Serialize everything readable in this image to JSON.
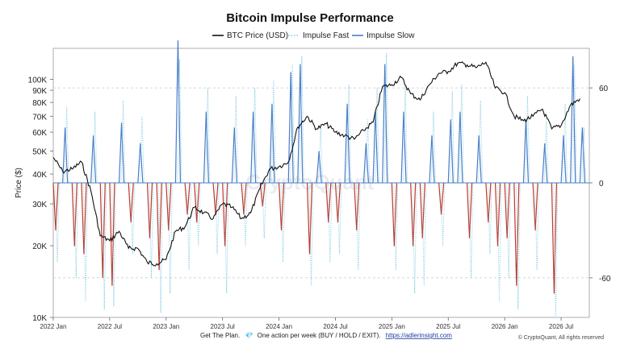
{
  "chart_data": {
    "type": "line",
    "title": "Bitcoin Impulse Performance",
    "ylabel": "Price ($)",
    "legend": {
      "placement": "top-center",
      "items": [
        {
          "name": "BTC Price (USD)",
          "style": "solid",
          "color": "#111111"
        },
        {
          "name": "Impulse Fast",
          "style": "dotted",
          "color": "#7ec8e3"
        },
        {
          "name": "Impulse Slow",
          "style": "solid",
          "color": "#4a7cc7"
        }
      ]
    },
    "x_ticks": [
      "2022 Jan",
      "2022 Jul",
      "2023 Jan",
      "2023 Jul",
      "2024 Jan",
      "2024 Jul",
      "2025 Jan",
      "2025 Jul",
      "2026 Jan",
      "2026 Jul"
    ],
    "x_range": [
      "2022-01",
      "2026-10"
    ],
    "y_left": {
      "scale": "log",
      "range": [
        10000,
        135000
      ],
      "ticks": [
        {
          "value": 10000,
          "label": "10K"
        },
        {
          "value": 20000,
          "label": "20K"
        },
        {
          "value": 30000,
          "label": "30K"
        },
        {
          "value": 40000,
          "label": "40K"
        },
        {
          "value": 50000,
          "label": "50K"
        },
        {
          "value": 60000,
          "label": "60K"
        },
        {
          "value": 70000,
          "label": "70K"
        },
        {
          "value": 80000,
          "label": "80K"
        },
        {
          "value": 90000,
          "label": "90K"
        },
        {
          "value": 100000,
          "label": "100K"
        }
      ]
    },
    "y_right": {
      "scale": "linear",
      "range": [
        -85,
        85
      ],
      "ticks": [
        {
          "value": 60,
          "label": "60"
        },
        {
          "value": 0,
          "label": "0"
        },
        {
          "value": -60,
          "label": "-60"
        }
      ]
    },
    "btc_price": {
      "name": "BTC Price (USD)",
      "x": [
        "2022-01",
        "2022-02",
        "2022-03",
        "2022-04",
        "2022-05",
        "2022-06",
        "2022-07",
        "2022-08",
        "2022-09",
        "2022-10",
        "2022-11",
        "2022-12",
        "2023-01",
        "2023-02",
        "2023-03",
        "2023-04",
        "2023-05",
        "2023-06",
        "2023-07",
        "2023-08",
        "2023-09",
        "2023-10",
        "2023-11",
        "2023-12",
        "2024-01",
        "2024-02",
        "2024-03",
        "2024-04",
        "2024-05",
        "2024-06",
        "2024-07",
        "2024-08",
        "2024-09",
        "2024-10",
        "2024-11",
        "2024-12",
        "2025-01",
        "2025-02",
        "2025-03",
        "2025-04",
        "2025-05",
        "2025-06",
        "2025-07",
        "2025-08",
        "2025-09",
        "2025-10",
        "2025-11",
        "2025-12",
        "2026-01",
        "2026-02",
        "2026-03",
        "2026-04",
        "2026-05",
        "2026-06",
        "2026-07",
        "2026-08",
        "2026-09"
      ],
      "values": [
        47000,
        41000,
        42000,
        45000,
        34000,
        22000,
        21000,
        23000,
        19500,
        19500,
        17000,
        16800,
        17500,
        23000,
        24000,
        29000,
        27500,
        26000,
        30000,
        29000,
        26000,
        27500,
        35000,
        42000,
        43000,
        45000,
        63000,
        70000,
        62000,
        65000,
        60000,
        58000,
        56000,
        61000,
        66000,
        93000,
        95000,
        102000,
        87000,
        82000,
        95000,
        106000,
        108000,
        117000,
        115000,
        112000,
        118000,
        92000,
        88000,
        70000,
        67000,
        70000,
        75000,
        62000,
        64000,
        78000,
        83000
      ]
    },
    "impulse_fast": {
      "name": "Impulse Fast",
      "x": [
        "2022-01",
        "2022-02",
        "2022-03",
        "2022-04",
        "2022-05",
        "2022-06",
        "2022-07",
        "2022-08",
        "2022-09",
        "2022-10",
        "2022-11",
        "2022-12",
        "2023-01",
        "2023-02",
        "2023-03",
        "2023-04",
        "2023-05",
        "2023-06",
        "2023-07",
        "2023-08",
        "2023-09",
        "2023-10",
        "2023-11",
        "2023-12",
        "2024-01",
        "2024-02",
        "2024-03",
        "2024-04",
        "2024-05",
        "2024-06",
        "2024-07",
        "2024-08",
        "2024-09",
        "2024-10",
        "2024-11",
        "2024-12",
        "2025-01",
        "2025-02",
        "2025-03",
        "2025-04",
        "2025-05",
        "2025-06",
        "2025-07",
        "2025-08",
        "2025-09",
        "2025-10",
        "2025-11",
        "2025-12",
        "2026-01",
        "2026-02",
        "2026-03",
        "2026-04",
        "2026-05",
        "2026-06",
        "2026-07",
        "2026-08",
        "2026-09"
      ],
      "values": [
        -50,
        48,
        -60,
        -75,
        45,
        -80,
        -78,
        52,
        -45,
        42,
        -60,
        -82,
        -70,
        78,
        -55,
        -40,
        60,
        -45,
        -70,
        55,
        -40,
        60,
        -35,
        65,
        -50,
        75,
        80,
        -65,
        35,
        -50,
        -45,
        62,
        -55,
        40,
        60,
        82,
        -55,
        62,
        -70,
        -65,
        45,
        -40,
        58,
        62,
        -60,
        52,
        -45,
        -75,
        -60,
        -80,
        55,
        -55,
        40,
        -85,
        50,
        75,
        35
      ]
    },
    "impulse_slow": {
      "name": "Impulse Slow",
      "x": [
        "2022-01",
        "2022-02",
        "2022-03",
        "2022-04",
        "2022-05",
        "2022-06",
        "2022-07",
        "2022-08",
        "2022-09",
        "2022-10",
        "2022-11",
        "2022-12",
        "2023-01",
        "2023-02",
        "2023-03",
        "2023-04",
        "2023-05",
        "2023-06",
        "2023-07",
        "2023-08",
        "2023-09",
        "2023-10",
        "2023-11",
        "2023-12",
        "2024-01",
        "2024-02",
        "2024-03",
        "2024-04",
        "2024-05",
        "2024-06",
        "2024-07",
        "2024-08",
        "2024-09",
        "2024-10",
        "2024-11",
        "2024-12",
        "2025-01",
        "2025-02",
        "2025-03",
        "2025-04",
        "2025-05",
        "2025-06",
        "2025-07",
        "2025-08",
        "2025-09",
        "2025-10",
        "2025-11",
        "2025-12",
        "2026-01",
        "2026-02",
        "2026-03",
        "2026-04",
        "2026-05",
        "2026-06",
        "2026-07",
        "2026-08",
        "2026-09"
      ],
      "values": [
        -30,
        35,
        -40,
        -45,
        30,
        -60,
        -65,
        38,
        -25,
        25,
        -35,
        -55,
        -30,
        90,
        -20,
        -25,
        45,
        -20,
        -40,
        35,
        -20,
        45,
        -15,
        50,
        -30,
        70,
        75,
        -45,
        20,
        -25,
        -25,
        50,
        -30,
        25,
        45,
        75,
        -40,
        45,
        -40,
        -35,
        30,
        -20,
        40,
        45,
        -35,
        30,
        -25,
        -40,
        -35,
        -65,
        40,
        -30,
        25,
        -70,
        30,
        80,
        35
      ]
    }
  },
  "footer": {
    "prefix": "Get The Plan.",
    "gem": "💎",
    "message": "One action per week (BUY / HOLD / EXIT).",
    "link": "https://adlerinsight.com",
    "credit": "© CryptoQuant, All rights reserved"
  },
  "colors": {
    "price": "#111111",
    "fast": "#7ec8e3",
    "slow": "#4a7cc7",
    "negative": "#c0392b",
    "grid": "#c8c8c8"
  }
}
